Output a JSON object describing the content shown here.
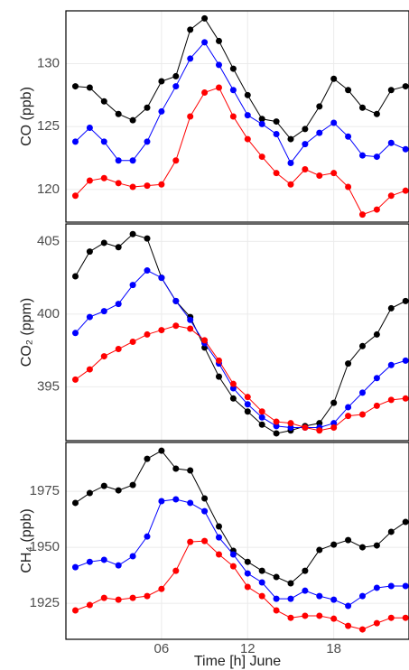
{
  "chart_data": [
    {
      "type": "line",
      "ylabel": "CO (ppb)",
      "x": [
        0,
        1,
        2,
        3,
        4,
        5,
        6,
        7,
        8,
        9,
        10,
        11,
        12,
        13,
        14,
        15,
        16,
        17,
        18,
        19,
        20,
        21,
        22,
        23
      ],
      "xlim": [
        -0.66,
        23.24
      ],
      "xticks": [
        6,
        12,
        18
      ],
      "ylim": [
        117.4,
        134.2
      ],
      "yticks": [
        120,
        125,
        130
      ],
      "series": [
        {
          "color": "#000000",
          "values": [
            128.2,
            128.1,
            127.0,
            126.0,
            125.5,
            126.5,
            128.6,
            129.0,
            132.7,
            133.6,
            131.8,
            129.6,
            127.5,
            125.6,
            125.4,
            124.0,
            124.8,
            126.6,
            128.8,
            127.9,
            126.5,
            126.0,
            127.9,
            128.2
          ]
        },
        {
          "color": "#0000ff",
          "values": [
            123.8,
            124.9,
            123.8,
            122.3,
            122.3,
            123.8,
            126.2,
            128.2,
            130.4,
            131.7,
            129.9,
            127.9,
            125.9,
            125.2,
            124.4,
            122.1,
            123.6,
            124.5,
            125.3,
            124.2,
            122.7,
            122.6,
            123.7,
            123.2
          ]
        },
        {
          "color": "#ff0000",
          "values": [
            119.5,
            120.7,
            120.9,
            120.5,
            120.2,
            120.3,
            120.4,
            122.3,
            125.8,
            127.7,
            128.1,
            125.8,
            124.0,
            122.6,
            121.3,
            120.4,
            121.6,
            121.1,
            121.3,
            120.2,
            118.0,
            118.4,
            119.5,
            119.9
          ]
        }
      ]
    },
    {
      "type": "line",
      "ylabel": "CO₂ (ppm)",
      "x": [
        0,
        1,
        2,
        3,
        4,
        5,
        6,
        7,
        8,
        9,
        10,
        11,
        12,
        13,
        14,
        15,
        16,
        17,
        18,
        19,
        20,
        21,
        22,
        23
      ],
      "xlim": [
        -0.66,
        23.24
      ],
      "xticks": [
        6,
        12,
        18
      ],
      "ylim": [
        391.3,
        406.2
      ],
      "yticks": [
        395,
        400,
        405
      ],
      "series": [
        {
          "color": "#000000",
          "values": [
            402.6,
            404.3,
            404.9,
            404.6,
            405.5,
            405.2,
            402.5,
            400.9,
            399.8,
            397.7,
            395.7,
            394.2,
            393.3,
            392.4,
            391.8,
            392.0,
            392.3,
            392.5,
            393.9,
            396.6,
            397.8,
            398.6,
            400.4,
            400.9
          ]
        },
        {
          "color": "#0000ff",
          "values": [
            398.7,
            399.8,
            400.2,
            400.7,
            402.0,
            403.0,
            402.5,
            400.9,
            399.6,
            398.0,
            396.6,
            394.9,
            393.8,
            392.9,
            392.3,
            392.2,
            392.2,
            392.2,
            392.5,
            393.6,
            394.6,
            395.6,
            396.5,
            396.8
          ]
        },
        {
          "color": "#ff0000",
          "values": [
            395.5,
            396.2,
            397.1,
            397.6,
            398.1,
            398.6,
            398.9,
            399.2,
            399.0,
            398.2,
            396.8,
            395.2,
            394.3,
            393.3,
            392.6,
            392.5,
            392.2,
            392.0,
            392.2,
            393.0,
            393.1,
            393.7,
            394.1,
            394.2
          ]
        }
      ]
    },
    {
      "type": "line",
      "ylabel": "CH₄ (ppb)",
      "xlabel": "Time [h] June",
      "x": [
        0,
        1,
        2,
        3,
        4,
        5,
        6,
        7,
        8,
        9,
        10,
        11,
        12,
        13,
        14,
        15,
        16,
        17,
        18,
        19,
        20,
        21,
        22,
        23
      ],
      "xlim": [
        -0.66,
        23.24
      ],
      "xticks": [
        {
          "value": 6,
          "label": "06"
        },
        12,
        18
      ],
      "ylim": [
        1908.9,
        1996.8
      ],
      "yticks": [
        1925,
        1950,
        1975
      ],
      "series": [
        {
          "color": "#000000",
          "values": [
            1969.8,
            1974.2,
            1977.4,
            1975.4,
            1977.8,
            1989.5,
            1993.1,
            1985.1,
            1984.3,
            1971.8,
            1959.3,
            1948.4,
            1943.5,
            1939.5,
            1936.7,
            1933.9,
            1939.5,
            1948.8,
            1951.2,
            1953.2,
            1950.0,
            1950.8,
            1956.9,
            1961.3
          ]
        },
        {
          "color": "#0000ff",
          "values": [
            1941.1,
            1943.5,
            1944.4,
            1941.9,
            1946.0,
            1954.8,
            1970.6,
            1971.4,
            1969.8,
            1966.1,
            1954.4,
            1946.8,
            1938.3,
            1934.3,
            1927.0,
            1927.0,
            1930.6,
            1928.2,
            1926.6,
            1923.8,
            1928.2,
            1931.9,
            1932.7,
            1932.7
          ]
        },
        {
          "color": "#ff0000",
          "values": [
            1921.8,
            1924.2,
            1927.4,
            1926.6,
            1927.4,
            1928.2,
            1931.4,
            1939.5,
            1952.4,
            1952.8,
            1946.8,
            1941.5,
            1932.3,
            1928.2,
            1921.8,
            1918.5,
            1919.4,
            1919.4,
            1918.1,
            1914.9,
            1913.3,
            1916.1,
            1918.5,
            1918.5
          ]
        }
      ]
    }
  ]
}
